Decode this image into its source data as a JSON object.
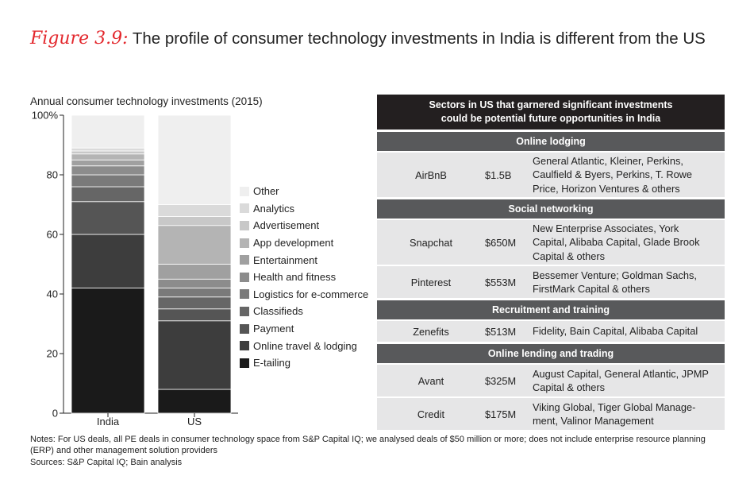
{
  "figure_label": "Figure 3.9:",
  "title": "The profile of consumer technology investments in India is different from the US",
  "chart_data": {
    "type": "bar",
    "stacked": true,
    "title": "Annual consumer technology investments (2015)",
    "categories": [
      "India",
      "US"
    ],
    "ylim": [
      0,
      100
    ],
    "yticks": [
      {
        "v": 0,
        "label": "0"
      },
      {
        "v": 20,
        "label": "20"
      },
      {
        "v": 40,
        "label": "40"
      },
      {
        "v": 60,
        "label": "60"
      },
      {
        "v": 80,
        "label": "80"
      },
      {
        "v": 100,
        "label": "100%"
      }
    ],
    "series": [
      {
        "name": "E-tailing",
        "color": "#1a1a1a",
        "values": [
          42,
          8
        ]
      },
      {
        "name": "Online travel & lodging",
        "color": "#3d3d3d",
        "values": [
          18,
          23
        ]
      },
      {
        "name": "Payment",
        "color": "#555555",
        "values": [
          11,
          4
        ]
      },
      {
        "name": "Classifieds",
        "color": "#666666",
        "values": [
          5,
          4
        ]
      },
      {
        "name": "Logistics for e-commerce",
        "color": "#7a7a7a",
        "values": [
          4,
          3
        ]
      },
      {
        "name": "Health and fitness",
        "color": "#8c8c8c",
        "values": [
          3,
          3
        ]
      },
      {
        "name": "Entertainment",
        "color": "#a0a0a0",
        "values": [
          2,
          5
        ]
      },
      {
        "name": "App development",
        "color": "#b4b4b4",
        "values": [
          2,
          13
        ]
      },
      {
        "name": "Advertisement",
        "color": "#c8c8c8",
        "values": [
          1,
          3
        ]
      },
      {
        "name": "Analytics",
        "color": "#dadada",
        "values": [
          1,
          4
        ]
      },
      {
        "name": "Other",
        "color": "#efefef",
        "values": [
          11,
          30
        ]
      }
    ]
  },
  "table": {
    "header_line1": "Sectors in US that garnered significant investments",
    "header_line2": "could be potential future opportunities in India",
    "sections": [
      {
        "title": "Online lodging",
        "rows": [
          {
            "company": "AirBnB",
            "amount": "$1.5B",
            "investors": [
              "General Atlantic, Kleiner, Perkins,",
              "Caulfield & Byers, Perkins, T. Rowe",
              "Price, Horizon Ventures & others"
            ]
          }
        ]
      },
      {
        "title": "Social networking",
        "rows": [
          {
            "company": "Snapchat",
            "amount": "$650M",
            "investors": [
              "New Enterprise Associates, York",
              "Capital, Alibaba Capital, Glade Brook",
              "Capital & others"
            ]
          },
          {
            "company": "Pinterest",
            "amount": "$553M",
            "investors": [
              "Bessemer Venture; Goldman Sachs,",
              "FirstMark Capital & others"
            ]
          }
        ]
      },
      {
        "title": "Recruitment and training",
        "rows": [
          {
            "company": "Zenefits",
            "amount": "$513M",
            "investors": [
              "Fidelity, Bain Capital, Alibaba Capital"
            ]
          }
        ]
      },
      {
        "title": "Online lending and trading",
        "rows": [
          {
            "company": "Avant",
            "amount": "$325M",
            "investors": [
              "August Capital, General Atlantic, JPMP",
              "Capital & others"
            ]
          },
          {
            "company": "Credit",
            "amount": "$175M",
            "investors": [
              "Viking Global, Tiger Global Manage-",
              "ment, Valinor Management"
            ]
          }
        ]
      }
    ]
  },
  "notes": [
    "Notes: For US deals, all PE deals in consumer technology space from S&P Capital IQ; we analysed deals of $50 million or more; does not include enterprise resource planning",
    "(ERP) and other management solution providers",
    "Sources: S&P Capital IQ; Bain analysis"
  ]
}
